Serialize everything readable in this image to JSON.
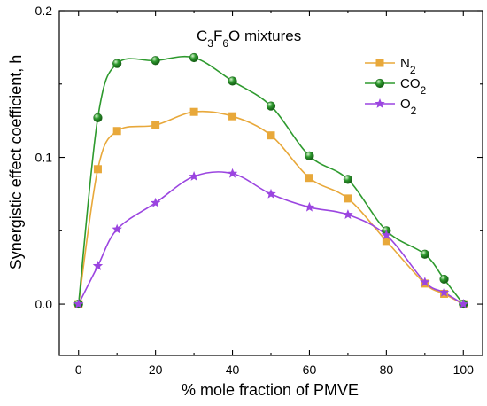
{
  "chart_data": {
    "type": "line",
    "title": {
      "prefix": "C",
      "sub1": "3",
      "mid": "F",
      "sub2": "6",
      "suffix": "O mixtures"
    },
    "xlabel": "% mole fraction of PMVE",
    "ylabel": "Synergistic effect coefficient, h",
    "xlim": [
      -5,
      105
    ],
    "ylim": [
      -0.035,
      0.2
    ],
    "xticks": [
      0,
      20,
      40,
      60,
      80,
      100
    ],
    "xtick_labels": [
      "0",
      "20",
      "40",
      "60",
      "80",
      "100"
    ],
    "yticks": [
      0.0,
      0.1,
      0.2
    ],
    "ytick_labels": [
      "0.0",
      "0.1",
      "0.2"
    ],
    "legend_position": "top-right",
    "series": [
      {
        "name": "N2",
        "label_base": "N",
        "label_sub": "2",
        "color": "#E8A83A",
        "marker": "square",
        "x": [
          0,
          5,
          10,
          20,
          30,
          40,
          50,
          60,
          70,
          80,
          90,
          95,
          100
        ],
        "y": [
          0.0,
          0.092,
          0.118,
          0.122,
          0.131,
          0.128,
          0.115,
          0.086,
          0.072,
          0.043,
          0.014,
          0.007,
          0.0
        ]
      },
      {
        "name": "CO2",
        "label_base": "CO",
        "label_sub": "2",
        "color": "#2E9A2E",
        "marker": "sphere",
        "x": [
          0,
          5,
          10,
          20,
          30,
          40,
          50,
          60,
          70,
          80,
          90,
          95,
          100
        ],
        "y": [
          0.0,
          0.127,
          0.164,
          0.166,
          0.168,
          0.152,
          0.135,
          0.101,
          0.085,
          0.05,
          0.034,
          0.017,
          0.0
        ]
      },
      {
        "name": "O2",
        "label_base": "O",
        "label_sub": "2",
        "color": "#9B45E0",
        "marker": "star",
        "x": [
          0,
          5,
          10,
          20,
          30,
          40,
          50,
          60,
          70,
          80,
          90,
          95,
          100
        ],
        "y": [
          0.0,
          0.026,
          0.051,
          0.069,
          0.087,
          0.089,
          0.075,
          0.066,
          0.061,
          0.047,
          0.015,
          0.008,
          0.0
        ]
      }
    ]
  }
}
